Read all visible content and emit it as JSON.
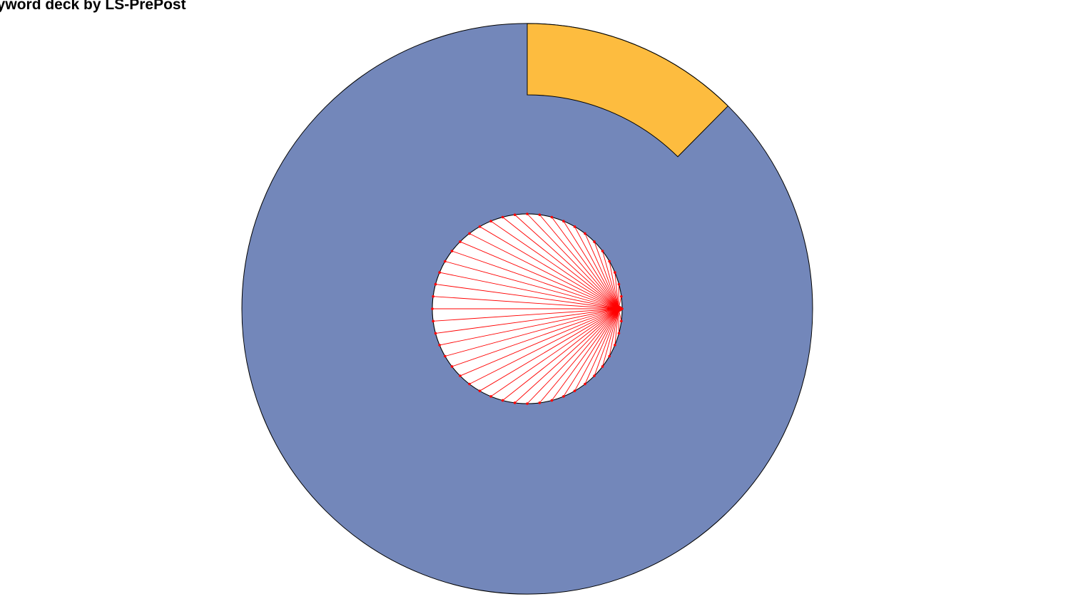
{
  "window": {
    "title": "eyword deck by LS-PrePost"
  },
  "model": {
    "outer_disk_color": "#7387BA",
    "sector_color": "#FDBC3F",
    "hole_color": "#FFFFFF",
    "edge_color": "#000000",
    "spring_color": "#FF0000",
    "spring_count": 48
  }
}
